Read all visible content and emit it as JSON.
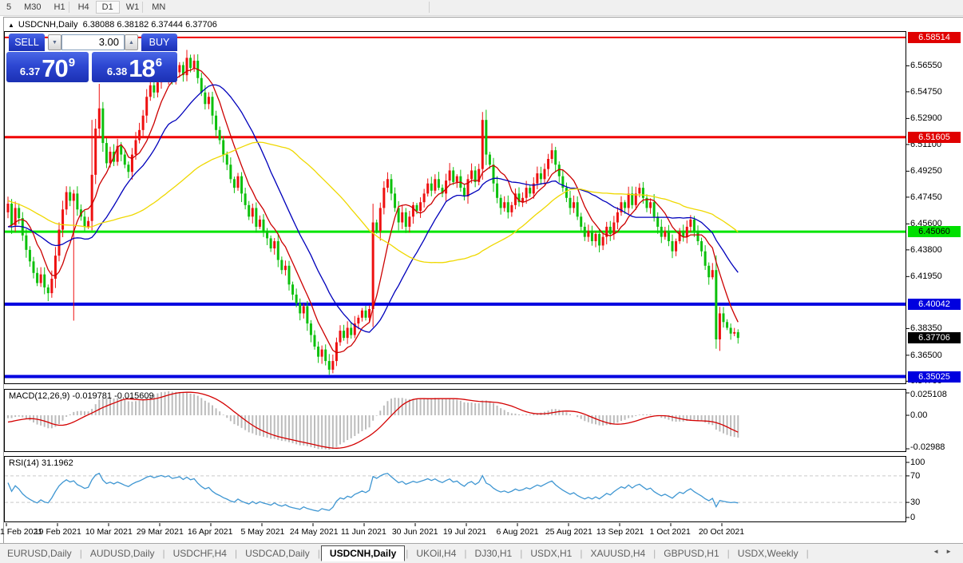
{
  "toolbar": {
    "timeframes": [
      "5",
      "M30",
      "H1",
      "H4",
      "D1",
      "W1",
      "MN"
    ],
    "active_timeframe": "D1"
  },
  "window": {
    "collapse_glyph": "▲",
    "title": "USDCNH,Daily",
    "ohlc": "6.38088 6.38182 6.37444 6.37706"
  },
  "trade": {
    "sell_label": "SELL",
    "buy_label": "BUY",
    "volume": "3.00",
    "spin_down_glyph": "▼",
    "spin_up_glyph": "▲",
    "bid_small": "6.37",
    "bid_big": "70",
    "bid_sup": "9",
    "ask_small": "6.38",
    "ask_big": "18",
    "ask_sup": "6"
  },
  "chart_data": {
    "type": "candlestick",
    "symbol": "USDCNH",
    "timeframe": "Daily",
    "bull_color": "#ee1010",
    "bear_color": "#0cc00c",
    "price_axis": {
      "max": 6.5895,
      "min": 6.345,
      "ticks": [
        6.5655,
        6.5475,
        6.529,
        6.511,
        6.4925,
        6.4745,
        6.456,
        6.438,
        6.4195,
        6.3835,
        6.365,
        6.347
      ],
      "badges": [
        {
          "value": 6.58514,
          "text": "6.58514",
          "bg": "#e00000",
          "fg": "#ffffff"
        },
        {
          "value": 6.51605,
          "text": "6.51605",
          "bg": "#e00000",
          "fg": "#ffffff"
        },
        {
          "value": 6.4506,
          "text": "6.45060",
          "bg": "#00df00",
          "fg": "#000000"
        },
        {
          "value": 6.40042,
          "text": "6.40042",
          "bg": "#0000df",
          "fg": "#ffffff"
        },
        {
          "value": 6.37706,
          "text": "6.37706",
          "bg": "#000000",
          "fg": "#ffffff"
        },
        {
          "value": 6.35025,
          "text": "6.35025",
          "bg": "#0000df",
          "fg": "#ffffff"
        }
      ]
    },
    "hlines": [
      {
        "price": 6.58514,
        "color": "#f00000",
        "width": 2
      },
      {
        "price": 6.51605,
        "color": "#f00000",
        "width": 3
      },
      {
        "price": 6.4506,
        "color": "#00e400",
        "width": 3
      },
      {
        "price": 6.40042,
        "color": "#0000e0",
        "width": 4
      },
      {
        "price": 6.35025,
        "color": "#0000e0",
        "width": 4
      }
    ],
    "x_axis": {
      "labels": [
        "1 Feb 2021",
        "19 Feb 2021",
        "10 Mar 2021",
        "29 Mar 2021",
        "16 Apr 2021",
        "5 May 2021",
        "24 May 2021",
        "11 Jun 2021",
        "30 Jun 2021",
        "19 Jul 2021",
        "6 Aug 2021",
        "25 Aug 2021",
        "13 Sep 2021",
        "1 Oct 2021",
        "20 Oct 2021"
      ]
    },
    "moving_averages": [
      {
        "period": 8,
        "color": "#cc0000"
      },
      {
        "period": 21,
        "color": "#0000bb"
      },
      {
        "period": 55,
        "color": "#efd800"
      }
    ],
    "candles": {
      "pre_closes": [
        6.524,
        6.521,
        6.517,
        6.52,
        6.514,
        6.511,
        6.514,
        6.508,
        6.505,
        6.508,
        6.502,
        6.499,
        6.501,
        6.497,
        6.494,
        6.497,
        6.491,
        6.489,
        6.492,
        6.487,
        6.484,
        6.487,
        6.482,
        6.479,
        6.482,
        6.477,
        6.475,
        6.478,
        6.473,
        6.471,
        6.474,
        6.469,
        6.467,
        6.47,
        6.466,
        6.464,
        6.467,
        6.462,
        6.46,
        6.464,
        6.459,
        6.457,
        6.461,
        6.456,
        6.454,
        6.458,
        6.453,
        6.451,
        6.455,
        6.45,
        6.449,
        6.453,
        6.448,
        6.447,
        6.451,
        6.447,
        6.445,
        6.449,
        6.459,
        6.464
      ],
      "closes": [
        6.47,
        6.455,
        6.467,
        6.46,
        6.448,
        6.438,
        6.43,
        6.422,
        6.415,
        6.421,
        6.412,
        6.408,
        6.418,
        6.434,
        6.452,
        6.466,
        6.478,
        6.472,
        6.477,
        6.466,
        6.461,
        6.454,
        6.458,
        6.49,
        6.522,
        6.536,
        6.512,
        6.498,
        6.506,
        6.499,
        6.51,
        6.504,
        6.497,
        6.492,
        6.504,
        6.514,
        6.521,
        6.531,
        6.544,
        6.552,
        6.547,
        6.554,
        6.561,
        6.557,
        6.564,
        6.557,
        6.561,
        6.566,
        6.559,
        6.571,
        6.564,
        6.569,
        6.557,
        6.547,
        6.539,
        6.544,
        6.531,
        6.521,
        6.514,
        6.504,
        6.497,
        6.487,
        6.481,
        6.489,
        6.477,
        6.469,
        6.461,
        6.467,
        6.454,
        6.459,
        6.451,
        6.446,
        6.439,
        6.444,
        6.431,
        6.424,
        6.427,
        6.414,
        6.407,
        6.401,
        6.394,
        6.399,
        6.387,
        6.379,
        6.371,
        6.364,
        6.369,
        6.361,
        6.355,
        6.361,
        6.374,
        6.382,
        6.377,
        6.384,
        6.379,
        6.387,
        6.391,
        6.396,
        6.391,
        6.397,
        6.457,
        6.451,
        6.467,
        6.481,
        6.487,
        6.477,
        6.467,
        6.457,
        6.464,
        6.454,
        6.461,
        6.469,
        6.465,
        6.471,
        6.477,
        6.484,
        6.479,
        6.487,
        6.481,
        6.477,
        6.486,
        6.493,
        6.485,
        6.489,
        6.481,
        6.475,
        6.487,
        6.493,
        6.485,
        6.494,
        6.528,
        6.504,
        6.497,
        6.484,
        6.474,
        6.467,
        6.471,
        6.464,
        6.469,
        6.477,
        6.471,
        6.474,
        6.481,
        6.477,
        6.484,
        6.491,
        6.487,
        6.494,
        6.501,
        6.507,
        6.497,
        6.489,
        6.481,
        6.474,
        6.467,
        6.471,
        6.461,
        6.454,
        6.447,
        6.451,
        6.444,
        6.449,
        6.441,
        6.447,
        6.454,
        6.449,
        6.457,
        6.464,
        6.471,
        6.467,
        6.477,
        6.469,
        6.477,
        6.481,
        6.474,
        6.467,
        6.471,
        6.461,
        6.454,
        6.447,
        6.451,
        6.444,
        6.437,
        6.444,
        6.451,
        6.447,
        6.454,
        6.459,
        6.451,
        6.444,
        6.437,
        6.427,
        6.419,
        6.424,
        6.376,
        6.394,
        6.388,
        6.384,
        6.38,
        6.381,
        6.377
      ],
      "wick_overrides": {
        "11": {
          "l": 6.4025
        },
        "18": {
          "l": 6.389
        },
        "23": {
          "h": 6.528
        },
        "25": {
          "h": 6.553
        },
        "49": {
          "h": 6.5765
        },
        "88": {
          "l": 6.3515
        },
        "130": {
          "h": 6.5335
        },
        "194": {
          "l": 6.3695
        },
        "195": {
          "l": 6.368
        }
      }
    },
    "macd": {
      "name": "MACD(12,26,9)",
      "value1": "-0.019781",
      "value2": "-0.015609",
      "fast": 12,
      "slow": 26,
      "signal": 9,
      "axis_top": "0.025108",
      "axis_zero": "0.00",
      "axis_bottom": "-0.02988",
      "bar_color": "#bcbcbc",
      "signal_color": "#d40000"
    },
    "rsi": {
      "name": "RSI(14)",
      "value": "31.1962",
      "period": 14,
      "axis_labels": [
        "100",
        "70",
        "30",
        "0"
      ],
      "levels": [
        70,
        30
      ],
      "line_color": "#3e96d2"
    }
  },
  "tabs": {
    "items": [
      "EURUSD,Daily",
      "AUDUSD,Daily",
      "USDCHF,H4",
      "USDCAD,Daily",
      "USDCNH,Daily",
      "UKOil,H4",
      "DJ30,H1",
      "USDX,H1",
      "XAUUSD,H4",
      "GBPUSD,H1",
      "USDX,Weekly"
    ],
    "active": "USDCNH,Daily",
    "scroll_left_glyph": "◄",
    "scroll_right_glyph": "►"
  }
}
